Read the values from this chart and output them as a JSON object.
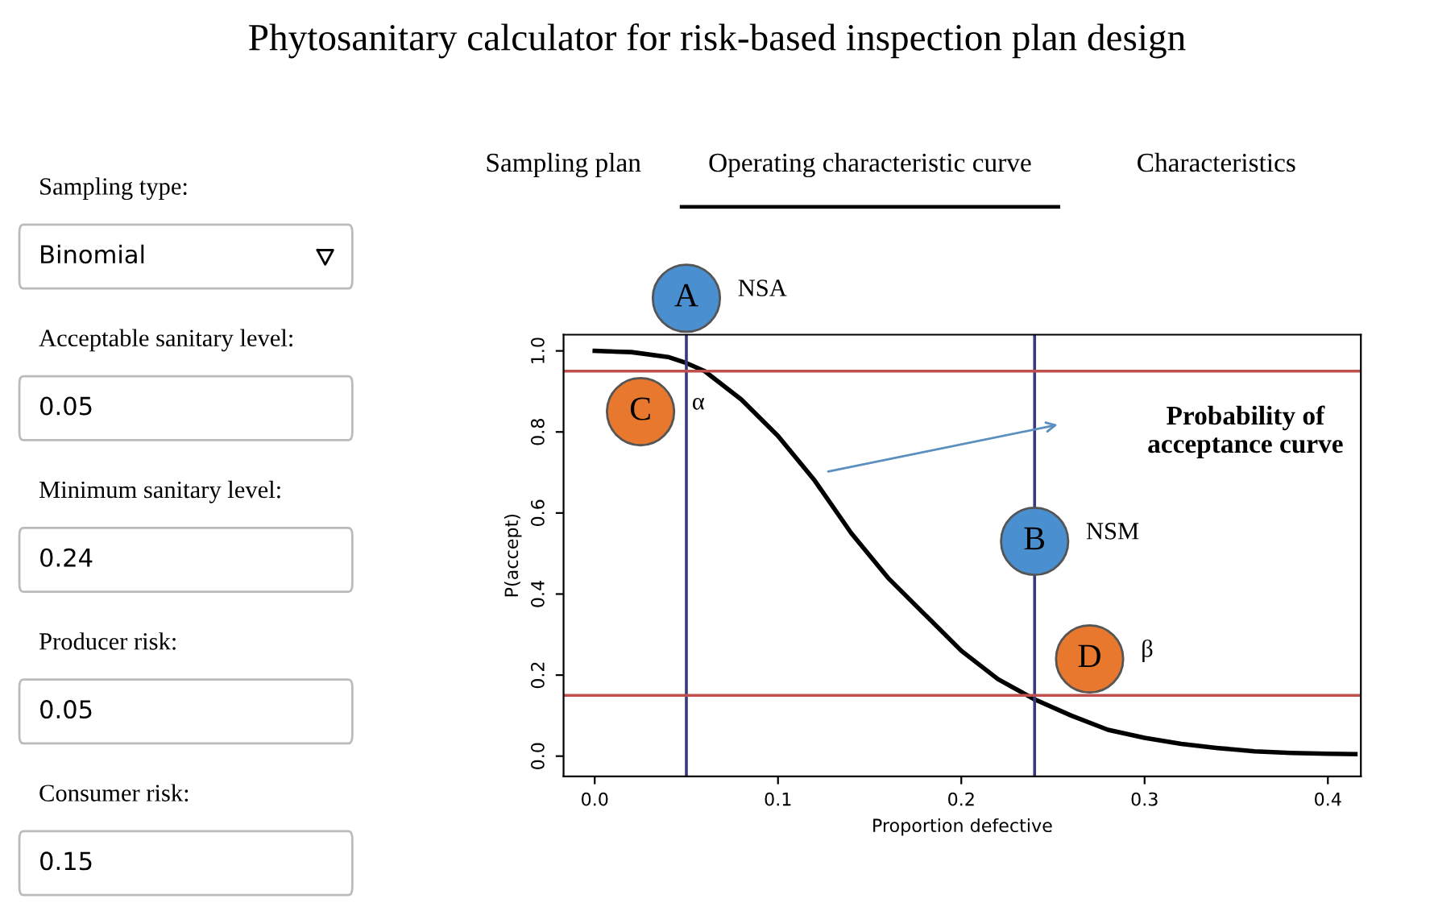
{
  "chart_data": [
    {
      "type": "other",
      "title": "Phytosanitary calculator for risk-based inspection plan design",
      "annotations": [
        "Sampling type:",
        "Binomial",
        "Acceptable sanitary level:",
        "0.05",
        "Minimum sanitary level:",
        "0.24",
        "Producer risk:",
        "0.05",
        "Consumer risk:",
        "0.15"
      ]
    },
    {
      "type": "other",
      "annotations": [
        "Sampling plan",
        "Operating characteristic curve",
        "Characteristics"
      ]
    },
    {
      "type": "line",
      "xlabel": "Proportion defective",
      "ylabel": "P(accept)",
      "x": [
        0,
        0.02,
        0.04,
        0.05,
        0.06,
        0.08,
        0.1,
        0.12,
        0.14,
        0.16,
        0.18,
        0.2,
        0.22,
        0.24,
        0.26,
        0.28,
        0.3,
        0.32,
        0.34,
        0.36,
        0.38,
        0.4,
        0.415
      ],
      "series": [
        {
          "color": "#000000",
          "values": [
            1.0,
            0.997,
            0.985,
            0.97,
            0.95,
            0.88,
            0.79,
            0.68,
            0.55,
            0.44,
            0.35,
            0.26,
            0.19,
            0.14,
            0.1,
            0.065,
            0.045,
            0.03,
            0.02,
            0.012,
            0.008,
            0.006,
            0.005
          ]
        }
      ],
      "xlim": [
        -0.017,
        0.418
      ],
      "ylim": [
        -0.05,
        1.04
      ],
      "xticks": [
        {
          "value": 0,
          "label": "0.0"
        },
        0.1,
        0.2,
        0.3,
        0.4
      ],
      "yticks": [
        {
          "value": 0,
          "label": "0.0"
        },
        0.2,
        0.4,
        0.6,
        0.8,
        {
          "value": 1,
          "label": "1.0"
        }
      ],
      "ref_lines": [
        {
          "axis": "x",
          "value": 0.05,
          "label": "NSA",
          "color": "#3a3a7a"
        },
        {
          "axis": "x",
          "value": 0.24,
          "label": "NSM",
          "color": "#3a3a7a"
        },
        {
          "axis": "y",
          "value": 0.95,
          "label": "α",
          "color": "#c0504d"
        },
        {
          "axis": "y",
          "value": 0.15,
          "label": "β",
          "color": "#c0504d"
        }
      ],
      "annotations": [
        {
          "text": "A",
          "x": 0.05,
          "y": 1.13
        },
        {
          "text": "C",
          "x": 0.025,
          "y": 0.85
        },
        {
          "text": "B",
          "x": 0.24,
          "y": 0.53
        },
        {
          "text": "D",
          "x": 0.27,
          "y": 0.24
        },
        "Probability of\nacceptance curve"
      ],
      "grid": false,
      "legend": false
    }
  ]
}
